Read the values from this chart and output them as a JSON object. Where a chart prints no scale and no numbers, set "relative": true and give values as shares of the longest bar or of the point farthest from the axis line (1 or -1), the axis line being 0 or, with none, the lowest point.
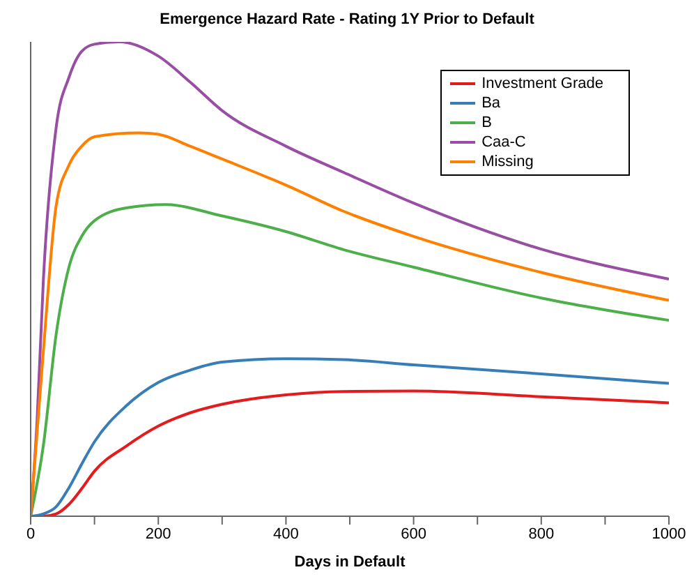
{
  "chart_data": {
    "type": "line",
    "title": "Emergence Hazard Rate - Rating 1Y Prior to Default",
    "xlabel": "Days in Default",
    "relative": true,
    "legend": "top right",
    "grid": false,
    "marker": "none",
    "line_style": "solid",
    "xlim": [
      0,
      1000
    ],
    "xticks": [
      0,
      {
        "value": 100,
        "label": null
      },
      200,
      {
        "value": 300,
        "label": null
      },
      400,
      {
        "value": 500,
        "label": null
      },
      600,
      {
        "value": 700,
        "label": null
      },
      800,
      {
        "value": 900,
        "label": null
      },
      1000
    ],
    "series": [
      {
        "name": "Investment Grade",
        "color": "#e41a1c",
        "x": [
          0,
          20,
          40,
          60,
          80,
          100,
          150,
          200,
          250,
          300,
          400,
          490,
          600,
          800,
          1000
        ],
        "values": [
          0,
          0,
          0.005,
          0.025,
          0.058,
          0.095,
          0.148,
          0.19,
          0.218,
          0.236,
          0.256,
          0.263,
          0.264,
          0.252,
          0.239
        ]
      },
      {
        "name": "Ba",
        "color": "#377eb8",
        "x": [
          0,
          20,
          40,
          60,
          80,
          100,
          150,
          200,
          250,
          300,
          400,
          490,
          600,
          800,
          1000
        ],
        "values": [
          0,
          0.005,
          0.02,
          0.06,
          0.11,
          0.157,
          0.233,
          0.282,
          0.308,
          0.325,
          0.332,
          0.33,
          0.319,
          0.3,
          0.28
        ]
      },
      {
        "name": "B",
        "color": "#4daf4a",
        "x": [
          0,
          20,
          40,
          60,
          80,
          100,
          150,
          211,
          300,
          400,
          490,
          600,
          800,
          1000
        ],
        "values": [
          0,
          0.15,
          0.384,
          0.525,
          0.59,
          0.623,
          0.65,
          0.657,
          0.633,
          0.6,
          0.562,
          0.525,
          0.46,
          0.413
        ]
      },
      {
        "name": "Caa-C",
        "color": "#984ea3",
        "x": [
          0,
          10,
          20,
          40,
          60,
          80,
          100,
          139,
          200,
          250,
          300,
          400,
          490,
          600,
          800,
          1000
        ],
        "values": [
          0,
          0.2,
          0.5,
          0.82,
          0.925,
          0.98,
          0.995,
          1,
          0.97,
          0.915,
          0.855,
          0.78,
          0.725,
          0.66,
          0.563,
          0.5
        ]
      },
      {
        "name": "Missing",
        "color": "#ff7f00",
        "x": [
          0,
          20,
          40,
          60,
          80,
          100,
          170,
          200,
          250,
          300,
          400,
          490,
          600,
          800,
          1000
        ],
        "values": [
          0,
          0.35,
          0.655,
          0.74,
          0.78,
          0.8,
          0.808,
          0.805,
          0.78,
          0.753,
          0.698,
          0.643,
          0.59,
          0.514,
          0.455
        ]
      }
    ]
  }
}
